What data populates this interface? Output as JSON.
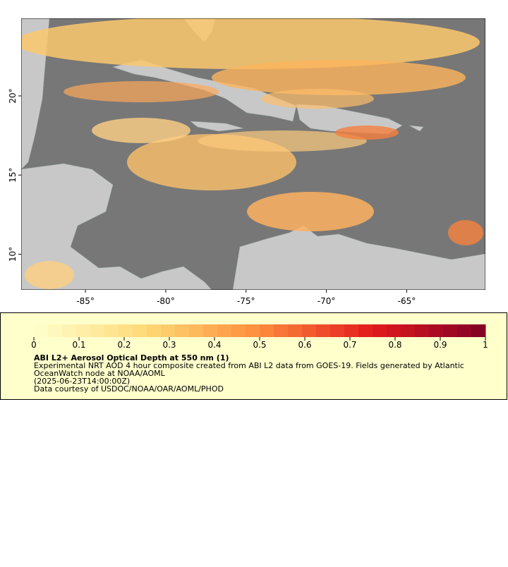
{
  "map": {
    "xlim": [
      -89,
      -60.1
    ],
    "ylim": [
      7.75,
      24.9
    ],
    "xticks": [
      {
        "value": -85,
        "label": "-85°"
      },
      {
        "value": -80,
        "label": "-80°"
      },
      {
        "value": -75,
        "label": "-75°"
      },
      {
        "value": -70,
        "label": "-70°"
      },
      {
        "value": -65,
        "label": "-65°"
      }
    ],
    "yticks": [
      {
        "value": 10,
        "label": "10°"
      },
      {
        "value": 15,
        "label": "15°"
      },
      {
        "value": 20,
        "label": "20°"
      }
    ]
  },
  "colorbar": {
    "lim": [
      0,
      1
    ],
    "ticks": [
      0,
      0.1,
      0.2,
      0.3,
      0.4,
      0.5,
      0.6,
      0.7,
      0.8,
      0.9,
      1
    ]
  },
  "legend": {
    "title": "ABI L2+ Aerosol Optical Depth at 550 nm (1)",
    "lines": [
      "Experimental NRT AOD 4 hour composite created from ABI L2 data from GOES-19. Fields generated by Atlantic",
      "OceanWatch node at NOAA/AOML",
      "(2025-06-23T14:00:00Z)",
      "Data courtesy of USDOC/NOAA/OAR/AOML/PHOD"
    ]
  }
}
